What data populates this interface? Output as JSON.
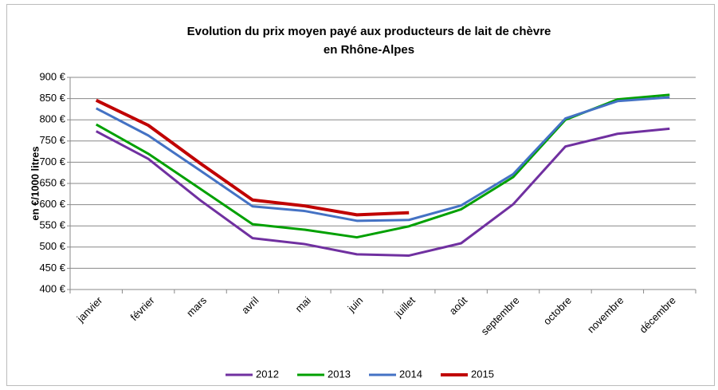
{
  "chart_data": {
    "type": "line",
    "title": [
      "Evolution du prix moyen payé aux producteurs de lait de chèvre",
      "en Rhône-Alpes"
    ],
    "ylabel": "en €/1000 litres",
    "categories": [
      "janvier",
      "février",
      "mars",
      "avril",
      "mai",
      "juin",
      "juillet",
      "août",
      "septembre",
      "octobre",
      "novembre",
      "décembre"
    ],
    "series": [
      {
        "name": "2012",
        "color": "#7030a0",
        "values": [
          773,
          708,
          610,
          521,
          507,
          483,
          480,
          509,
          601,
          737,
          767,
          779
        ]
      },
      {
        "name": "2013",
        "color": "#00a000",
        "values": [
          789,
          720,
          637,
          554,
          541,
          523,
          549,
          589,
          665,
          800,
          848,
          859
        ]
      },
      {
        "name": "2014",
        "color": "#4472c4",
        "values": [
          827,
          763,
          680,
          596,
          585,
          562,
          564,
          598,
          672,
          803,
          844,
          853
        ]
      },
      {
        "name": "2015",
        "color": "#c00000",
        "values": [
          846,
          787,
          697,
          611,
          597,
          576,
          581,
          null,
          null,
          null,
          null,
          null
        ]
      }
    ],
    "ylim": [
      400,
      900
    ],
    "yticks": [
      {
        "value": 400,
        "label": "400 €"
      },
      {
        "value": 450,
        "label": "450 €"
      },
      {
        "value": 500,
        "label": "500 €"
      },
      {
        "value": 550,
        "label": "550 €"
      },
      {
        "value": 600,
        "label": "600 €"
      },
      {
        "value": 650,
        "label": "650 €"
      },
      {
        "value": 700,
        "label": "700 €"
      },
      {
        "value": 750,
        "label": "750 €"
      },
      {
        "value": 800,
        "label": "800 €"
      },
      {
        "value": 850,
        "label": "850 €"
      },
      {
        "value": 900,
        "label": "900 €"
      }
    ],
    "grid": true,
    "legend": "bottom"
  }
}
